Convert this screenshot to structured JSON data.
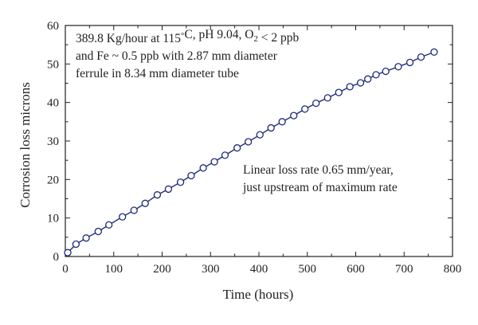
{
  "chart_data": {
    "type": "line",
    "xlabel": "Time (hours)",
    "ylabel": "Corrosion loss microns",
    "xlim": [
      0,
      800
    ],
    "ylim": [
      0,
      60
    ],
    "xticks": [
      0,
      100,
      200,
      300,
      400,
      500,
      600,
      700,
      800
    ],
    "yticks": [
      0,
      10,
      20,
      30,
      40,
      50,
      60
    ],
    "xtick_labels": [
      "0",
      "100",
      "200",
      "300",
      "400",
      "500",
      "600",
      "700",
      "800"
    ],
    "ytick_labels": [
      "0",
      "10",
      "20",
      "30",
      "40",
      "50",
      "60"
    ],
    "grid": false,
    "legend": "none",
    "line_color": "#1f2a7a",
    "marker": "hollow-circle",
    "series": [
      {
        "x": [
          5,
          22,
          43,
          68,
          90,
          118,
          142,
          165,
          190,
          213,
          238,
          260,
          285,
          308,
          330,
          355,
          378,
          402,
          425,
          448,
          472,
          495,
          518,
          542,
          565,
          588,
          610,
          625,
          642,
          662,
          688,
          712,
          735,
          762
        ],
        "y": [
          1,
          3.2,
          4.8,
          6.5,
          8.2,
          10.3,
          12.0,
          13.8,
          16.0,
          17.5,
          19.3,
          21.0,
          23.0,
          24.6,
          26.3,
          28.2,
          29.8,
          31.6,
          33.4,
          35.0,
          36.6,
          38.3,
          39.8,
          41.2,
          42.6,
          44.1,
          45.1,
          46.1,
          47.2,
          48.1,
          49.3,
          50.4,
          51.8,
          53.1
        ]
      }
    ],
    "annotations": [
      {
        "lines": [
          [
            {
              "t": "389.8 Kg/hour at 115"
            },
            {
              "t": "°",
              "sup": true
            },
            {
              "t": "C, pH 9.04, O"
            },
            {
              "t": "2",
              "sub": true
            },
            {
              "t": " < 2 ppb"
            }
          ],
          [
            {
              "t": "and Fe ~ 0.5 ppb with 2.87 mm diameter"
            }
          ],
          [
            {
              "t": "ferrule in 8.34 mm diameter tube"
            }
          ]
        ]
      },
      {
        "lines": [
          [
            {
              "t": "Linear loss rate 0.65 mm/year,"
            }
          ],
          [
            {
              "t": "just upstream of maximum rate"
            }
          ]
        ]
      }
    ]
  }
}
